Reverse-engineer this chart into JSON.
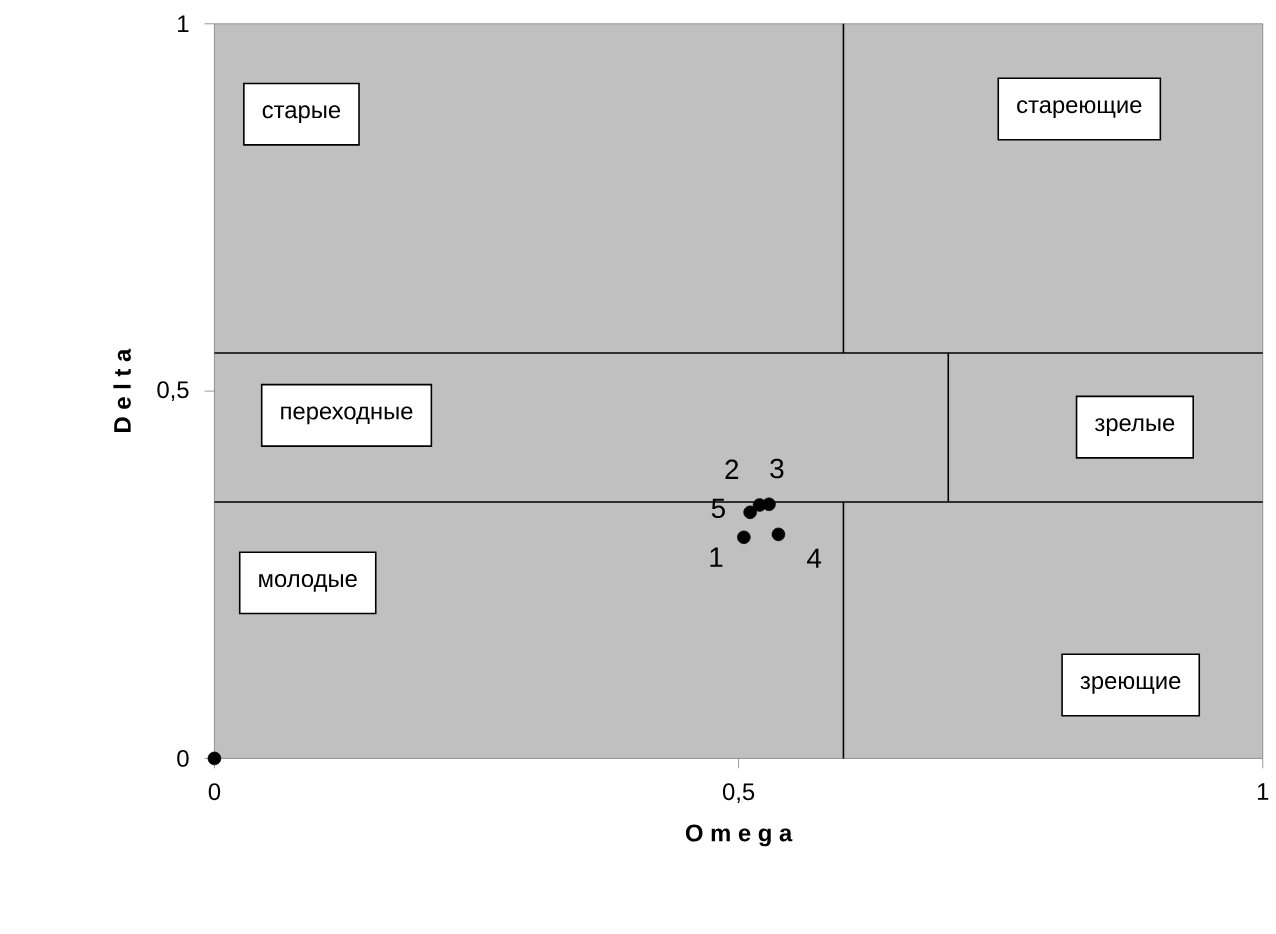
{
  "chart_data": {
    "type": "scatter",
    "xlabel": "O m e g a",
    "ylabel": "D e l t a",
    "xlim": [
      0,
      1
    ],
    "ylim": [
      0,
      1
    ],
    "xticks": [
      0,
      {
        "value": 0.5,
        "label": "0,5"
      },
      1
    ],
    "yticks": [
      0,
      {
        "value": 0.5,
        "label": "0,5"
      },
      1
    ],
    "series": [
      {
        "type": "line",
        "color": "#000000",
        "marker": "none",
        "x": [
          0,
          1
        ],
        "values": [
          0.552,
          0.552
        ]
      },
      {
        "type": "line",
        "color": "#000000",
        "marker": "none",
        "x": [
          0,
          1
        ],
        "values": [
          0.349,
          0.349
        ]
      },
      {
        "type": "line",
        "color": "#000000",
        "marker": "none",
        "x": [
          0.6,
          0.6
        ],
        "values": [
          0.552,
          1
        ]
      },
      {
        "type": "line",
        "color": "#000000",
        "marker": "none",
        "x": [
          0.6,
          0.6
        ],
        "values": [
          0,
          0.349
        ]
      },
      {
        "type": "line",
        "color": "#000000",
        "marker": "none",
        "x": [
          0.7,
          0.7
        ],
        "values": [
          0.349,
          0.552
        ]
      },
      {
        "color": "#000000",
        "marker": "circle",
        "x": [
          0.505,
          0.52,
          0.529,
          0.538,
          0.511,
          0
        ],
        "values": [
          0.301,
          0.345,
          0.346,
          0.305,
          0.335,
          0
        ]
      }
    ],
    "annotations": [
      "старые",
      "стареющие",
      "переходные",
      "зрелые",
      "молодые",
      "зреющие",
      {
        "text": "1",
        "x": 0.505,
        "y": 0.301
      },
      {
        "text": "2",
        "x": 0.52,
        "y": 0.345
      },
      {
        "text": "3",
        "x": 0.529,
        "y": 0.346
      },
      {
        "text": "4",
        "x": 0.538,
        "y": 0.305
      },
      {
        "text": "5",
        "x": 0.511,
        "y": 0.335
      }
    ],
    "grid": false
  }
}
